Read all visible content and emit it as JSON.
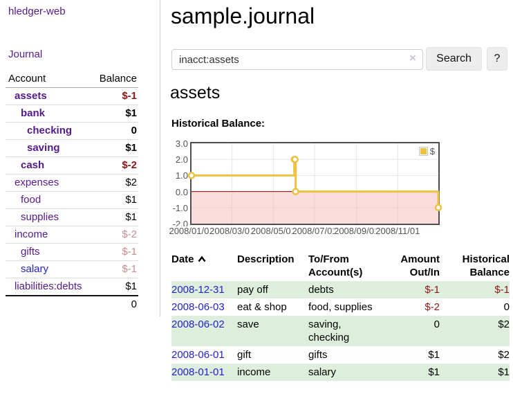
{
  "app": {
    "title": "hledger-web",
    "nav_journal": "Journal"
  },
  "sidebar": {
    "table_headers": {
      "account": "Account",
      "balance": "Balance"
    },
    "accounts": [
      {
        "name": "assets",
        "indent": 1,
        "bold": true,
        "balance": "$-1",
        "balance_style": "neg-strong",
        "link_style": "purple"
      },
      {
        "name": "bank",
        "indent": 2,
        "bold": true,
        "balance": "$1",
        "balance_style": "pos",
        "link_style": "purple"
      },
      {
        "name": "checking",
        "indent": 3,
        "bold": true,
        "balance": "0",
        "balance_style": "pos",
        "link_style": "purple"
      },
      {
        "name": "saving",
        "indent": 3,
        "bold": true,
        "balance": "$1",
        "balance_style": "pos",
        "link_style": "purple"
      },
      {
        "name": "cash",
        "indent": 2,
        "bold": true,
        "balance": "$-2",
        "balance_style": "neg-strong",
        "link_style": "purple"
      },
      {
        "name": "expenses",
        "indent": 1,
        "bold": false,
        "balance": "$2",
        "balance_style": "pos",
        "link_style": "purple"
      },
      {
        "name": "food",
        "indent": 2,
        "bold": false,
        "balance": "$1",
        "balance_style": "pos",
        "link_style": "purple"
      },
      {
        "name": "supplies",
        "indent": 2,
        "bold": false,
        "balance": "$1",
        "balance_style": "pos",
        "link_style": "purple"
      },
      {
        "name": "income",
        "indent": 1,
        "bold": false,
        "balance": "$-2",
        "balance_style": "neg-soft",
        "link_style": "purple"
      },
      {
        "name": "gifts",
        "indent": 2,
        "bold": false,
        "balance": "$-1",
        "balance_style": "neg-soft",
        "link_style": "purple"
      },
      {
        "name": "salary",
        "indent": 2,
        "bold": false,
        "balance": "$-1",
        "balance_style": "neg-soft",
        "link_style": "blue"
      },
      {
        "name": "liabilities:debts",
        "indent": 1,
        "bold": false,
        "balance": "$1",
        "balance_style": "pos",
        "link_style": "purple"
      }
    ],
    "total": "0"
  },
  "main": {
    "title": "sample.journal",
    "search": {
      "value": "inacct:assets",
      "clear_icon": "×",
      "button": "Search",
      "help_button": "?"
    },
    "section_title": "assets",
    "chart_label": "Historical Balance:"
  },
  "chart_data": {
    "type": "line",
    "title": "Historical Balance",
    "step": true,
    "series": [
      {
        "name": "$",
        "color": "#edc240",
        "points": [
          [
            "2008-01-01",
            1
          ],
          [
            "2008-06-01",
            2
          ],
          [
            "2008-06-02",
            2
          ],
          [
            "2008-06-03",
            0
          ],
          [
            "2008-12-31",
            -1
          ]
        ]
      }
    ],
    "xlim": [
      "2008-01-01",
      "2008-12-31"
    ],
    "ylim": [
      -2,
      3
    ],
    "xticks": [
      "2008/01/01",
      "2008/03/01",
      "2008/05/01",
      "2008/07/01",
      "2008/09/01",
      "2008/11/01"
    ],
    "yticks": [
      -2.0,
      -1.0,
      0.0,
      1.0,
      2.0,
      3.0
    ],
    "grid": true,
    "legend_position": "top-right",
    "negative_region_shaded": true
  },
  "register": {
    "headers": {
      "date": "Date",
      "description": "Description",
      "tofrom_line1": "To/From",
      "tofrom_line2": "Account(s)",
      "amount_line1": "Amount",
      "amount_line2": "Out/In",
      "balance_line1": "Historical",
      "balance_line2": "Balance"
    },
    "rows": [
      {
        "date": "2008-12-31",
        "description": "pay off",
        "accounts": "debts",
        "amount": "$-1",
        "amount_neg": true,
        "balance": "$-1",
        "balance_neg": true,
        "shaded": true
      },
      {
        "date": "2008-06-03",
        "description": "eat & shop",
        "accounts": "food, supplies",
        "amount": "$-2",
        "amount_neg": true,
        "balance": "0",
        "balance_neg": false,
        "shaded": false
      },
      {
        "date": "2008-06-02",
        "description": "save",
        "accounts": "saving, checking",
        "amount": "0",
        "amount_neg": false,
        "balance": "$2",
        "balance_neg": false,
        "shaded": true
      },
      {
        "date": "2008-06-01",
        "description": "gift",
        "accounts": "gifts",
        "amount": "$1",
        "amount_neg": false,
        "balance": "$2",
        "balance_neg": false,
        "shaded": false
      },
      {
        "date": "2008-01-01",
        "description": "income",
        "accounts": "salary",
        "amount": "$1",
        "amount_neg": false,
        "balance": "$1",
        "balance_neg": false,
        "shaded": true
      }
    ]
  },
  "colors": {
    "link_purple": "#551a8b",
    "link_blue": "#2222cc",
    "negative_strong": "#8e1515",
    "negative_soft": "#c98c8c",
    "row_green": "#ddeedd",
    "series_gold": "#edc240",
    "chart_negative_fill": "#fbdbdb",
    "zero_line": "#8b0000",
    "chart_border": "#4d4d4d",
    "grid_line": "#e6e6e6"
  }
}
